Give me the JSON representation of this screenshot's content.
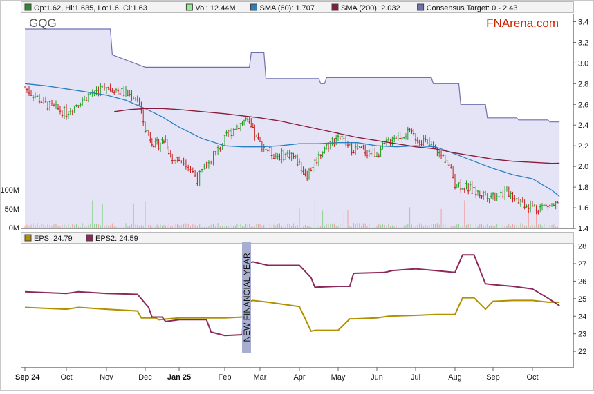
{
  "ticker": "GQG",
  "brand": "FNArena.com",
  "legend_top": [
    {
      "label": "Op:1.62, Hi:1.635, Lo:1.6, Cl:1.63",
      "color": "#2e8b2e"
    },
    {
      "label": "Vol: 12.44M",
      "color": "#90ee90"
    },
    {
      "label": "SMA (60): 1.707",
      "color": "#2a7fc0"
    },
    {
      "label": "SMA (200): 2.032",
      "color": "#8b1a3a"
    },
    {
      "label": "Consensus Target: 0 - 2.43",
      "color": "#7070b0"
    }
  ],
  "legend_bottom": [
    {
      "label": "EPS: 24.79",
      "color": "#b09000"
    },
    {
      "label": "EPS2: 24.59",
      "color": "#8b2a5a"
    }
  ],
  "annotation": "NEW FINANCIAL YEAR",
  "colors": {
    "up_candle": "#1f9e1f",
    "down_candle": "#c81e1e",
    "sma60": "#2a7fc0",
    "sma200": "#8b1a3a",
    "target_fill": "#e4e4f6",
    "target_line": "#7070b0",
    "eps": "#b09000",
    "eps2": "#8b2a5a",
    "annotation_bar": "#a8aed0"
  },
  "chart_data": [
    {
      "type": "line",
      "title": "GQG",
      "x_axis_ticks": [
        "Sep 24",
        "Oct",
        "Nov",
        "Dec",
        "Jan 25",
        "Feb",
        "Mar",
        "Apr",
        "May",
        "Jun",
        "Jul",
        "Aug",
        "Sep",
        "Oct"
      ],
      "y_ticks": [
        1.4,
        1.6,
        1.8,
        2.0,
        2.2,
        2.4,
        2.6,
        2.8,
        3.0,
        3.2,
        3.4
      ],
      "ylim": [
        1.4,
        3.47
      ],
      "volume_ticks": [
        "0M",
        "50M",
        "100M"
      ],
      "ohlc_last": {
        "open": 1.62,
        "high": 1.635,
        "low": 1.6,
        "close": 1.63
      },
      "volume_last": "12.44M",
      "series": [
        {
          "name": "Close",
          "x": [
            0,
            0.5,
            1,
            1.3,
            1.6,
            2,
            2.4,
            2.8,
            3,
            3.3,
            3.6,
            3.8,
            4.1,
            4.4,
            4.7,
            5,
            5.3,
            5.6,
            6,
            6.4,
            6.8,
            7.2,
            7.6,
            8,
            8.3,
            8.6,
            9,
            9.4,
            9.8,
            10.2,
            10.6,
            10.8,
            11,
            11.3,
            11.6,
            12,
            12.4,
            12.8,
            13.1,
            13.4,
            13.7
          ],
          "y": [
            2.76,
            2.6,
            2.52,
            2.62,
            2.7,
            2.78,
            2.72,
            2.66,
            2.36,
            2.2,
            2.26,
            2.06,
            2.07,
            1.88,
            2.06,
            2.26,
            2.38,
            2.45,
            2.22,
            2.1,
            2.12,
            1.92,
            2.16,
            2.3,
            2.18,
            2.16,
            2.12,
            2.28,
            2.32,
            2.25,
            2.12,
            2.06,
            1.84,
            1.8,
            1.74,
            1.72,
            1.75,
            1.64,
            1.6,
            1.62,
            1.63
          ]
        },
        {
          "name": "SMA (60)",
          "x": [
            0,
            0.5,
            1,
            1.5,
            2,
            2.5,
            3,
            3.5,
            4,
            4.5,
            5,
            5.5,
            6,
            6.5,
            7,
            7.5,
            8,
            8.5,
            9,
            9.5,
            10,
            10.5,
            11,
            11.5,
            12,
            12.5,
            13,
            13.5,
            13.7
          ],
          "y": [
            2.8,
            2.78,
            2.75,
            2.72,
            2.69,
            2.64,
            2.56,
            2.48,
            2.38,
            2.27,
            2.2,
            2.19,
            2.19,
            2.2,
            2.22,
            2.22,
            2.23,
            2.23,
            2.2,
            2.19,
            2.2,
            2.19,
            2.12,
            2.05,
            1.98,
            1.92,
            1.88,
            1.77,
            1.71
          ]
        },
        {
          "name": "SMA (200)",
          "x": [
            2.2,
            2.6,
            3,
            3.5,
            4,
            4.5,
            5,
            5.5,
            6,
            6.5,
            7,
            7.5,
            8,
            8.5,
            9,
            9.5,
            10,
            10.5,
            11,
            11.5,
            12,
            12.5,
            13,
            13.5,
            13.7
          ],
          "y": [
            2.53,
            2.55,
            2.56,
            2.56,
            2.55,
            2.53,
            2.51,
            2.49,
            2.47,
            2.44,
            2.4,
            2.36,
            2.32,
            2.28,
            2.25,
            2.22,
            2.19,
            2.17,
            2.13,
            2.1,
            2.07,
            2.05,
            2.04,
            2.03,
            2.032
          ]
        },
        {
          "name": "Consensus Target",
          "x": [
            0,
            1.1,
            2.1,
            2.15,
            3,
            5.7,
            5.75,
            6.1,
            6.15,
            7.5,
            7.55,
            7.65,
            7.7,
            10.4,
            10.45,
            11.1,
            11.15,
            11.8,
            11.85,
            12.6,
            12.65,
            13.4,
            13.45,
            13.7
          ],
          "y": [
            3.33,
            3.33,
            3.33,
            3.08,
            2.96,
            2.96,
            3.1,
            3.1,
            2.85,
            2.85,
            2.8,
            2.8,
            2.86,
            2.86,
            2.8,
            2.8,
            2.6,
            2.6,
            2.47,
            2.47,
            2.45,
            2.45,
            2.43,
            2.43
          ]
        }
      ]
    },
    {
      "type": "line",
      "x_axis_ticks": [
        "Sep 24",
        "Oct",
        "Nov",
        "Dec",
        "Jan 25",
        "Feb",
        "Mar",
        "Apr",
        "May",
        "Jun",
        "Jul",
        "Aug",
        "Sep",
        "Oct"
      ],
      "y_ticks": [
        22,
        23,
        24,
        25,
        26,
        27,
        28
      ],
      "ylim": [
        21.1,
        28.1
      ],
      "series": [
        {
          "name": "EPS",
          "x": [
            0,
            1,
            1.3,
            2,
            2.8,
            2.9,
            3.3,
            3.4,
            4,
            5,
            5.5,
            5.6,
            5.8,
            6.2,
            7,
            7.3,
            7.4,
            8,
            8.3,
            8.4,
            9,
            9.3,
            10,
            10.5,
            11,
            11.2,
            11.5,
            11.8,
            12,
            12.5,
            13,
            13.4,
            13.7
          ],
          "y": [
            24.5,
            24.4,
            24.5,
            24.4,
            24.3,
            23.9,
            23.9,
            23.8,
            23.9,
            23.9,
            23.95,
            24.8,
            24.9,
            24.8,
            24.55,
            23.15,
            23.2,
            23.2,
            23.85,
            23.85,
            23.9,
            24,
            24.05,
            24.1,
            24.1,
            25.05,
            25.05,
            24.4,
            24.85,
            24.9,
            24.9,
            24.8,
            24.8
          ]
        },
        {
          "name": "EPS2",
          "x": [
            0,
            1,
            1.3,
            2,
            2.8,
            3.1,
            3.2,
            3.5,
            3.6,
            4,
            4.6,
            4.7,
            5,
            5.5,
            5.6,
            5.8,
            6.2,
            7,
            7.3,
            7.4,
            8,
            8.3,
            8.4,
            9.2,
            9.4,
            10,
            10.5,
            11,
            11.2,
            11.5,
            11.8,
            12,
            12.5,
            13,
            13.35,
            13.7
          ],
          "y": [
            25.4,
            25.3,
            25.4,
            25.3,
            25.25,
            24.5,
            23.95,
            23.95,
            23.7,
            23.8,
            23.8,
            23.1,
            22.9,
            22.95,
            27,
            27.1,
            26.9,
            26.9,
            26.2,
            25.65,
            25.7,
            25.7,
            26.45,
            26.5,
            26.6,
            26.7,
            26.6,
            26.5,
            27.5,
            27.5,
            25.85,
            25.8,
            25.7,
            25.55,
            25.1,
            24.6
          ]
        }
      ]
    }
  ]
}
